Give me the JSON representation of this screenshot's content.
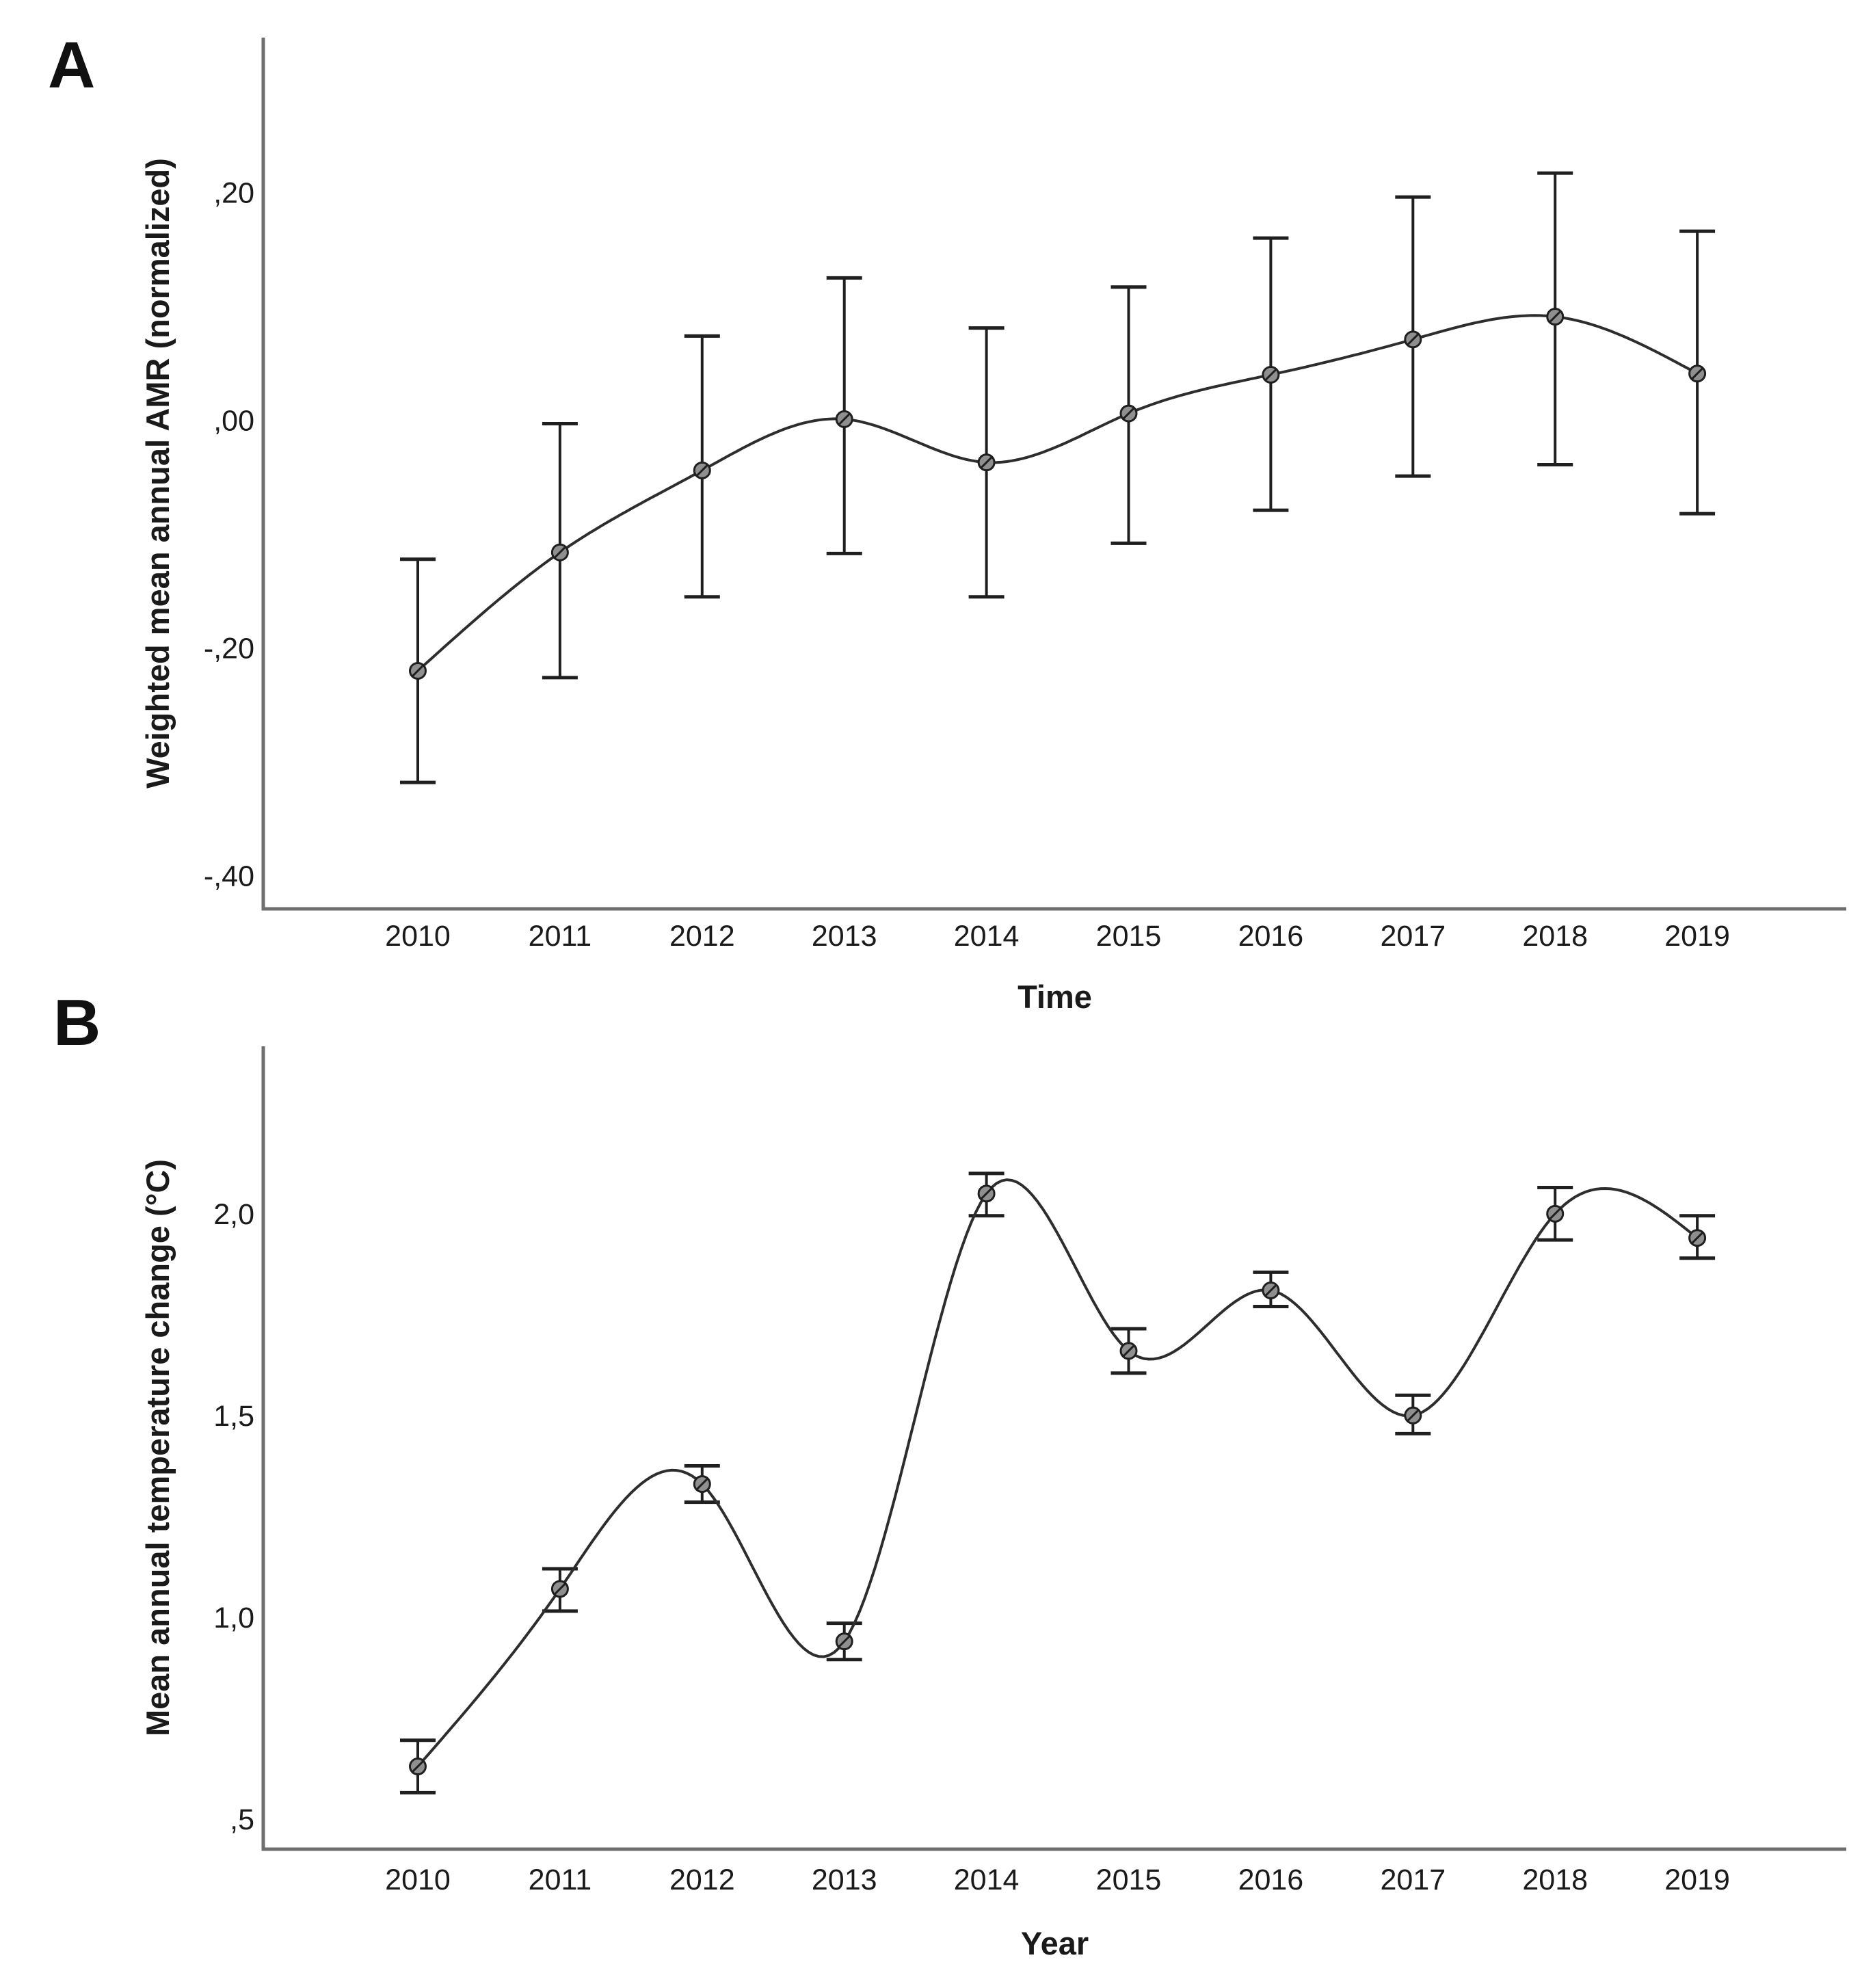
{
  "figure": {
    "background": "#ffffff",
    "panel_a_label": "A",
    "panel_b_label": "B"
  },
  "chart_data": [
    {
      "type": "line",
      "panel": "A",
      "title": "",
      "xlabel": "Time",
      "ylabel": "Weighted mean annual AMR (normalized)",
      "categories": [
        "2010",
        "2011",
        "2012",
        "2013",
        "2014",
        "2015",
        "2016",
        "2017",
        "2018",
        "2019"
      ],
      "values": [
        -0.22,
        -0.116,
        -0.044,
        0.001,
        -0.037,
        0.006,
        0.04,
        0.071,
        0.091,
        0.041
      ],
      "ci_low": [
        -0.318,
        -0.226,
        -0.155,
        -0.117,
        -0.155,
        -0.108,
        -0.079,
        -0.049,
        -0.039,
        -0.082
      ],
      "ci_high": [
        -0.122,
        -0.003,
        0.074,
        0.125,
        0.081,
        0.117,
        0.16,
        0.196,
        0.217,
        0.166
      ],
      "ytick_labels": [
        ",20",
        ",00",
        "-,20",
        "-,40"
      ],
      "ytick_values": [
        0.2,
        0.0,
        -0.2,
        -0.4
      ],
      "ylim": [
        -0.429,
        0.336
      ],
      "grid": false,
      "legend": "none",
      "error_bars": true,
      "interpolation": "cubic-spline",
      "marker": "circle-slash",
      "decimal_separator": "comma",
      "line_color": "#2d2d2d",
      "error_color": "#1f1f1f",
      "axis_color": "#6e6e6e",
      "marker_fill": "#8f8f8f",
      "marker_stroke": "#1f1f1f",
      "text_color": "#1a1a1a"
    },
    {
      "type": "line",
      "panel": "B",
      "title": "",
      "xlabel": "Year",
      "ylabel": "Mean annual temperature change (°C)",
      "categories": [
        "2010",
        "2011",
        "2012",
        "2013",
        "2014",
        "2015",
        "2016",
        "2017",
        "2018",
        "2019"
      ],
      "values": [
        0.63,
        1.07,
        1.33,
        0.94,
        2.05,
        1.66,
        1.81,
        1.5,
        2.0,
        1.94
      ],
      "ci_low": [
        0.565,
        1.015,
        1.285,
        0.895,
        1.995,
        1.605,
        1.77,
        1.455,
        1.935,
        1.89
      ],
      "ci_high": [
        0.695,
        1.12,
        1.375,
        0.985,
        2.1,
        1.715,
        1.855,
        1.55,
        2.065,
        1.995
      ],
      "ytick_labels": [
        "2,0",
        "1,5",
        "1,0",
        ",5"
      ],
      "ytick_values": [
        2.0,
        1.5,
        1.0,
        0.5
      ],
      "ylim": [
        0.425,
        2.415
      ],
      "grid": false,
      "legend": "none",
      "error_bars": true,
      "interpolation": "cubic-spline",
      "marker": "circle-slash",
      "decimal_separator": "comma",
      "line_color": "#2d2d2d",
      "error_color": "#1f1f1f",
      "axis_color": "#6e6e6e",
      "marker_fill": "#8f8f8f",
      "marker_stroke": "#1f1f1f",
      "text_color": "#1a1a1a"
    }
  ]
}
